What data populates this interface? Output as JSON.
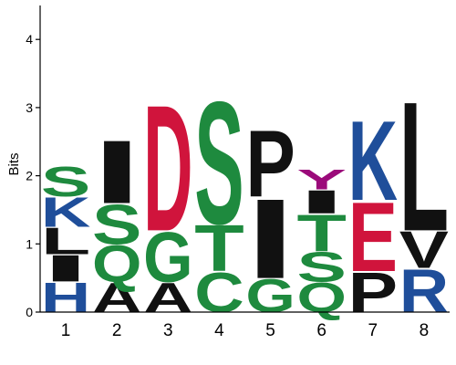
{
  "chart_data": {
    "type": "sequence-logo",
    "ylabel": "Bits",
    "ylim": [
      0,
      4.5
    ],
    "yticks": [
      0,
      1,
      2,
      3,
      4
    ],
    "positions": [
      "1",
      "2",
      "3",
      "4",
      "5",
      "6",
      "7",
      "8"
    ],
    "colors": {
      "H": "#1f4e9a",
      "K": "#1f4e9a",
      "R": "#1f4e9a",
      "D": "#d0143c",
      "E": "#d0143c",
      "S": "#1e8a3e",
      "Q": "#1e8a3e",
      "G": "#1e8a3e",
      "T": "#1e8a3e",
      "C": "#1e8a3e",
      "Y": "#9b0a7a",
      "I": "#111111",
      "L": "#111111",
      "A": "#111111",
      "P": "#111111",
      "V": "#111111"
    },
    "stacks": [
      [
        {
          "letter": "H",
          "bits": 0.45
        },
        {
          "letter": "I",
          "bits": 0.4
        },
        {
          "letter": "L",
          "bits": 0.4
        },
        {
          "letter": "K",
          "bits": 0.45
        },
        {
          "letter": "S",
          "bits": 0.45
        }
      ],
      [
        {
          "letter": "A",
          "bits": 0.45
        },
        {
          "letter": "Q",
          "bits": 0.55
        },
        {
          "letter": "S",
          "bits": 0.6
        },
        {
          "letter": "I",
          "bits": 0.95
        }
      ],
      [
        {
          "letter": "A",
          "bits": 0.45
        },
        {
          "letter": "G",
          "bits": 0.75
        },
        {
          "letter": "D",
          "bits": 1.9
        }
      ],
      [
        {
          "letter": "C",
          "bits": 0.6
        },
        {
          "letter": "T",
          "bits": 0.7
        },
        {
          "letter": "S",
          "bits": 1.85
        }
      ],
      [
        {
          "letter": "G",
          "bits": 0.5
        },
        {
          "letter": "I",
          "bits": 1.2
        },
        {
          "letter": "P",
          "bits": 1.0
        }
      ],
      [
        {
          "letter": "Q",
          "bits": 0.45
        },
        {
          "letter": "S",
          "bits": 0.45
        },
        {
          "letter": "T",
          "bits": 0.55
        },
        {
          "letter": "I",
          "bits": 0.35
        },
        {
          "letter": "Y",
          "bits": 0.3
        }
      ],
      [
        {
          "letter": "P",
          "bits": 0.6
        },
        {
          "letter": "E",
          "bits": 1.05
        },
        {
          "letter": "K",
          "bits": 1.2
        }
      ],
      [
        {
          "letter": "R",
          "bits": 0.65
        },
        {
          "letter": "V",
          "bits": 0.55
        },
        {
          "letter": "L",
          "bits": 1.95
        }
      ]
    ]
  }
}
